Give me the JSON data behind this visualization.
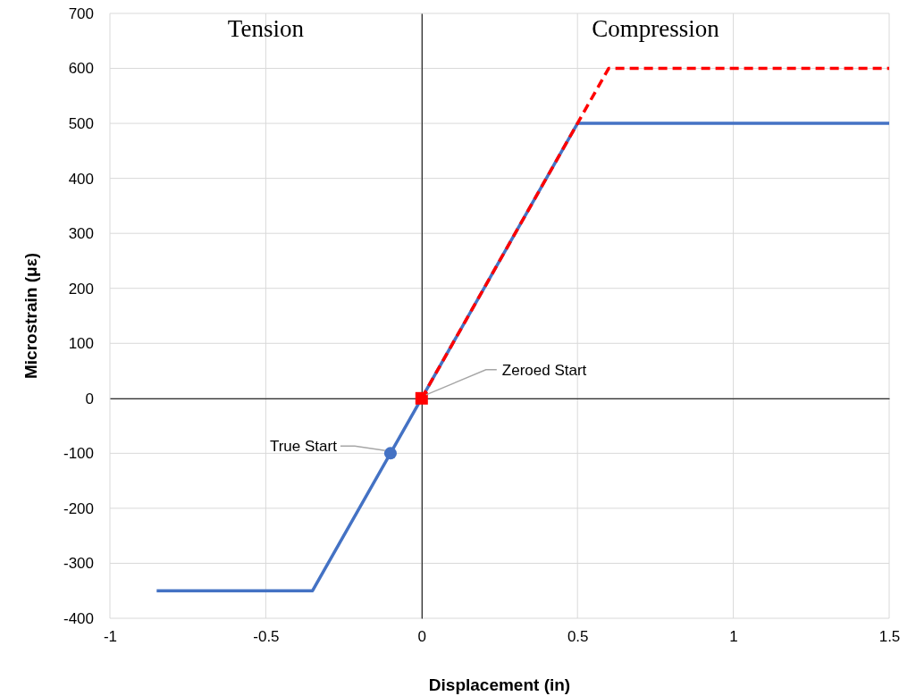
{
  "chart_data": {
    "type": "line",
    "xlabel": "Displacement (in)",
    "ylabel": "Microstrain (με)",
    "xlim": [
      -1,
      1.5
    ],
    "xticks": [
      -1,
      -0.5,
      0,
      0.5,
      1,
      1.5
    ],
    "ylim": [
      -400,
      700
    ],
    "yticks": [
      -400,
      -300,
      -200,
      -100,
      0,
      100,
      200,
      300,
      400,
      500,
      600,
      700
    ],
    "grid": true,
    "series": [
      {
        "color": "#4472c4",
        "line_style": "solid",
        "x": [
          -0.85,
          -0.35,
          0.5,
          1.5
        ],
        "values": [
          -350,
          -350,
          500,
          500
        ]
      },
      {
        "color": "#ff0000",
        "line_style": "dashed",
        "x": [
          0,
          0.6,
          1.5
        ],
        "values": [
          0,
          600,
          600
        ]
      },
      {
        "type": "scatter",
        "color": "#4472c4",
        "marker": "circle",
        "x": [
          -0.1
        ],
        "values": [
          -100
        ]
      },
      {
        "type": "scatter",
        "color": "#ff0000",
        "marker": "square",
        "x": [
          0
        ],
        "values": [
          0
        ]
      }
    ],
    "annotations": [
      "Tension",
      "Compression",
      {
        "text": "True Start",
        "x": -0.1,
        "y": -100
      },
      {
        "text": "Zeroed Start",
        "x": 0,
        "y": 0
      }
    ]
  }
}
